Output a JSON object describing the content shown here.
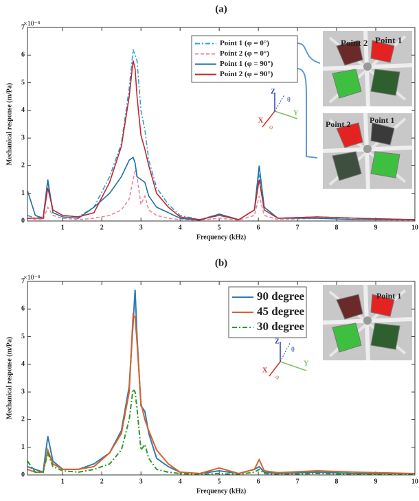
{
  "chart_data": [
    {
      "type": "line",
      "title": "(a)",
      "xlabel": "Frequency (kHz)",
      "ylabel": "Mechanical response (m/Pa)",
      "y_multiplier": "×10⁻⁸",
      "x": [
        0.1,
        0.3,
        0.5,
        0.62,
        0.75,
        1.0,
        1.4,
        1.8,
        2.2,
        2.5,
        2.7,
        2.8,
        2.85,
        2.9,
        3.0,
        3.1,
        3.2,
        3.4,
        3.7,
        4.0,
        4.5,
        5.0,
        5.5,
        5.9,
        6.02,
        6.15,
        6.5,
        7.5,
        8.5,
        10
      ],
      "xlim": [
        0.1,
        10
      ],
      "xticks": [
        1,
        2,
        3,
        4,
        5,
        6,
        7,
        8,
        9,
        10
      ],
      "ylim": [
        0,
        7
      ],
      "yticks": [
        0,
        1,
        2,
        3,
        4,
        5,
        6,
        7
      ],
      "series": [
        {
          "name": "Point 1 (φ = 0°)",
          "color": "#2f9fd8",
          "dash": "dashdot",
          "values": [
            0.2,
            0.1,
            0.15,
            1.4,
            0.4,
            0.2,
            0.15,
            0.5,
            1.6,
            2.8,
            4.8,
            6.2,
            6.0,
            5.8,
            4.0,
            3.3,
            2.2,
            1.2,
            0.6,
            0.2,
            0.05,
            0.25,
            0.05,
            0.4,
            1.7,
            0.5,
            0.1,
            0.15,
            0.1,
            0.05
          ]
        },
        {
          "name": "Point 2 (φ = 0°)",
          "color": "#ec8796",
          "dash": "dash",
          "values": [
            0.1,
            0.05,
            0.05,
            0.5,
            0.2,
            0.1,
            0.05,
            0.1,
            0.2,
            0.4,
            0.8,
            1.5,
            1.8,
            1.6,
            0.6,
            0.9,
            0.4,
            0.2,
            0.1,
            0.05,
            0.03,
            0.1,
            0.03,
            0.2,
            0.9,
            0.2,
            0.05,
            0.1,
            0.05,
            0.03
          ]
        },
        {
          "name": "Point 1 (φ = 90°)",
          "color": "#1f6fa3",
          "dash": "solid",
          "values": [
            1.1,
            0.2,
            0.1,
            1.5,
            0.3,
            0.15,
            0.1,
            0.5,
            1.0,
            1.6,
            2.2,
            2.3,
            2.1,
            1.6,
            1.5,
            1.4,
            0.9,
            0.5,
            0.3,
            0.1,
            0.03,
            0.25,
            0.05,
            0.4,
            2.0,
            0.5,
            0.1,
            0.1,
            0.05,
            0.05
          ]
        },
        {
          "name": "Point 2 (φ = 90°)",
          "color": "#c0282f",
          "dash": "solid",
          "values": [
            0.1,
            0.1,
            0.1,
            1.2,
            0.4,
            0.2,
            0.15,
            0.3,
            1.4,
            2.7,
            4.5,
            5.8,
            5.5,
            4.5,
            3.1,
            2.6,
            2.0,
            1.0,
            0.5,
            0.15,
            0.05,
            0.2,
            0.05,
            0.4,
            1.5,
            0.4,
            0.1,
            0.15,
            0.1,
            0.05
          ]
        }
      ],
      "annotations": [
        "Point 2",
        "Point 1",
        "Point 2",
        "Point 1",
        "Z",
        "θ",
        "Y",
        "X",
        "φ"
      ]
    },
    {
      "type": "line",
      "title": "(b)",
      "xlabel": "Frequency (kHz)",
      "ylabel": "Mechanical response (m/Pa)",
      "y_multiplier": "×10⁻⁸",
      "x": [
        0.1,
        0.3,
        0.5,
        0.62,
        0.75,
        1.0,
        1.4,
        1.8,
        2.2,
        2.5,
        2.7,
        2.8,
        2.85,
        2.9,
        3.0,
        3.1,
        3.2,
        3.4,
        3.7,
        4.0,
        4.5,
        5.0,
        5.5,
        5.9,
        6.02,
        6.15,
        6.5,
        7.5,
        8.5,
        10
      ],
      "xlim": [
        0.1,
        10
      ],
      "xticks": [
        1,
        2,
        3,
        4,
        5,
        6,
        7,
        8,
        9,
        10
      ],
      "ylim": [
        0,
        7
      ],
      "yticks": [
        0,
        1,
        2,
        3,
        4,
        5,
        6,
        7
      ],
      "series": [
        {
          "name": "90 degree",
          "color": "#2e7bb5",
          "dash": "solid",
          "values": [
            0.3,
            0.2,
            0.1,
            1.4,
            0.5,
            0.2,
            0.2,
            0.4,
            0.8,
            1.6,
            3.2,
            5.5,
            6.7,
            5.0,
            2.5,
            2.3,
            1.5,
            0.6,
            0.3,
            0.1,
            0.05,
            0.15,
            0.05,
            0.2,
            0.3,
            0.1,
            0.05,
            0.1,
            0.05,
            0.05
          ]
        },
        {
          "name": "45 degree",
          "color": "#d9622b",
          "dash": "solid",
          "values": [
            0.2,
            0.1,
            0.1,
            0.9,
            0.4,
            0.2,
            0.2,
            0.3,
            0.8,
            1.5,
            3.0,
            5.8,
            5.7,
            4.8,
            2.6,
            2.0,
            1.6,
            0.9,
            0.4,
            0.1,
            0.05,
            0.25,
            0.05,
            0.2,
            0.55,
            0.15,
            0.08,
            0.15,
            0.1,
            0.05
          ]
        },
        {
          "name": "30 degree",
          "color": "#2a9a2a",
          "dash": "dashdot",
          "values": [
            0.5,
            0.1,
            0.1,
            0.8,
            0.3,
            0.15,
            0.1,
            0.2,
            0.4,
            0.9,
            2.0,
            3.1,
            3.0,
            2.4,
            0.9,
            1.1,
            0.6,
            0.2,
            0.1,
            0.05,
            0.02,
            0.05,
            0.02,
            0.1,
            0.2,
            0.05,
            0.02,
            0.05,
            0.03,
            0.02
          ]
        }
      ],
      "annotations": [
        "Point 1",
        "Z",
        "θ",
        "Y",
        "X",
        "φ"
      ]
    }
  ]
}
